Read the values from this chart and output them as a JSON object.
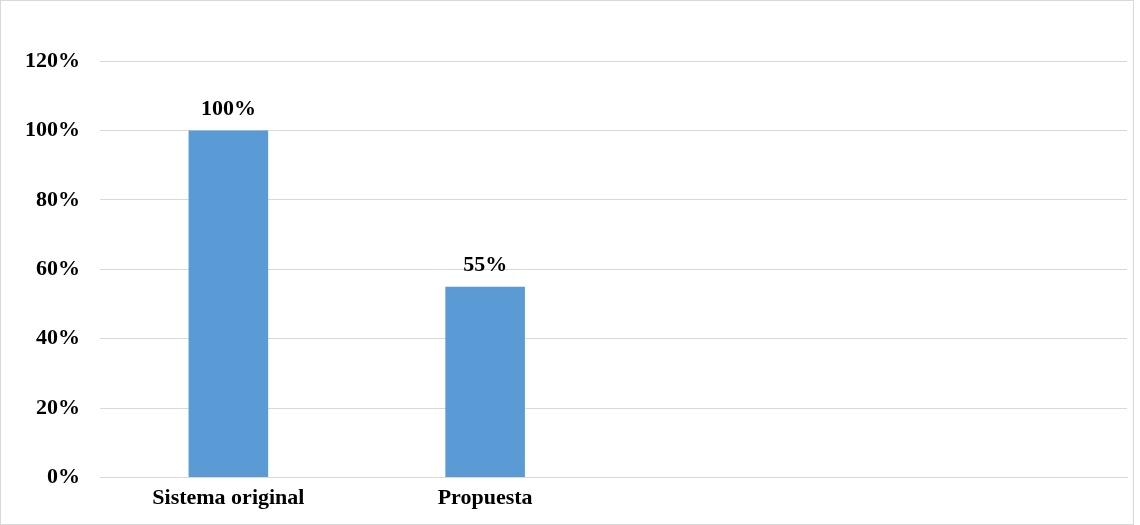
{
  "chart_data": {
    "type": "bar",
    "categories": [
      "Sistema original",
      "Propuesta",
      null,
      null
    ],
    "values": [
      100,
      55,
      null,
      null
    ],
    "color": "#5b9bd5",
    "value_labels": [
      "100%",
      "55%",
      null,
      null
    ],
    "ylim": [
      0,
      120
    ],
    "yticks": [
      {
        "value": 0,
        "label": "0%"
      },
      {
        "value": 20,
        "label": "20%"
      },
      {
        "value": 40,
        "label": "40%"
      },
      {
        "value": 60,
        "label": "60%"
      },
      {
        "value": 80,
        "label": "80%"
      },
      {
        "value": 100,
        "label": "100%"
      },
      {
        "value": 120,
        "label": "120%"
      }
    ],
    "grid": "y",
    "legend": false
  }
}
